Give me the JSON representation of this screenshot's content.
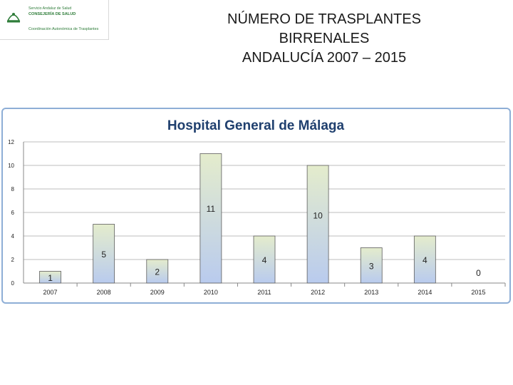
{
  "logo": {
    "line1": "Servicio Andaluz de Salud",
    "line2": "CONSEJERÍA DE SALUD",
    "line3": "Coordinación Autonómica de Trasplantes"
  },
  "title": {
    "line1": "NÚMERO DE TRASPLANTES",
    "line2": "BIRRENALES",
    "line3": "ANDALUCÍA  2007 – 2015"
  },
  "chart_data": {
    "type": "bar",
    "title": "Hospital General de Málaga",
    "categories": [
      "2007",
      "2008",
      "2009",
      "2010",
      "2011",
      "2012",
      "2013",
      "2014",
      "2015"
    ],
    "values": [
      1,
      5,
      2,
      11,
      4,
      10,
      3,
      4,
      0
    ],
    "yticks": [
      0,
      2,
      4,
      6,
      8,
      10,
      12
    ],
    "ylim": [
      0,
      12
    ],
    "grid": true,
    "legend": "none",
    "colors": {
      "bar_top": "#e4eccc",
      "bar_bottom": "#b9cbee",
      "bar_stroke": "#5d5d5d",
      "grid": "#bdbdbd",
      "title": "#1f3f6e"
    }
  }
}
